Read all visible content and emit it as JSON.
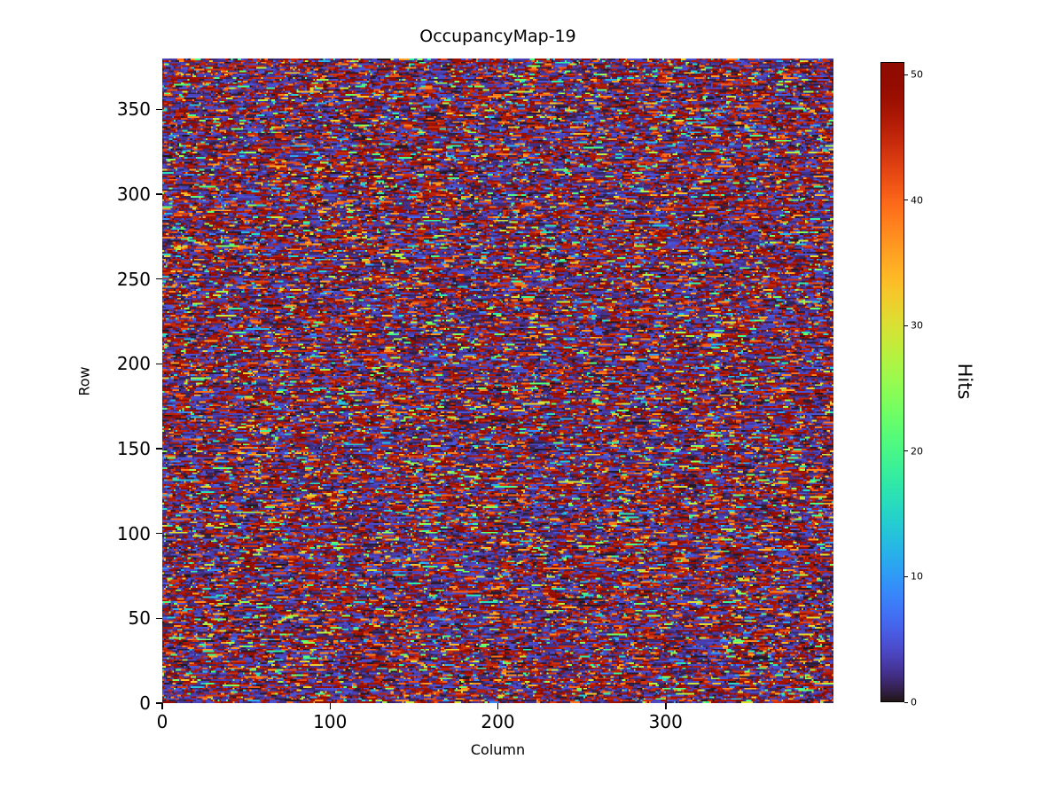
{
  "chart_data": {
    "type": "heatmap",
    "title": "OccupancyMap-19",
    "xlabel": "Column",
    "ylabel": "Row",
    "colorbar_label": "Hits",
    "colormap": "turbo",
    "x_range": [
      0,
      400
    ],
    "y_range": [
      0,
      380
    ],
    "grid_cols": 400,
    "grid_rows": 380,
    "value_range": [
      0,
      51
    ],
    "x_ticks": [
      0,
      100,
      200,
      300
    ],
    "y_ticks": [
      0,
      50,
      100,
      150,
      200,
      250,
      300,
      350
    ],
    "colorbar_ticks": [
      0,
      10,
      20,
      30,
      40,
      50
    ],
    "seed": 19,
    "distribution": {
      "description": "Dense random per-cell hit counts: dark near-zero background dominates, frequent saturated high-count red/dark-red short horizontal runs, occasional orange and sparse cyan/green/yellow mid-range cells",
      "p_low": 0.5,
      "low_range": [
        0,
        5
      ],
      "p_high": 0.32,
      "high_range": [
        44,
        51
      ],
      "p_orange": 0.08,
      "orange_range": [
        36,
        44
      ],
      "p_mid": 0.1,
      "mid_range": [
        6,
        36
      ],
      "run_continue_prob": 0.55
    }
  }
}
